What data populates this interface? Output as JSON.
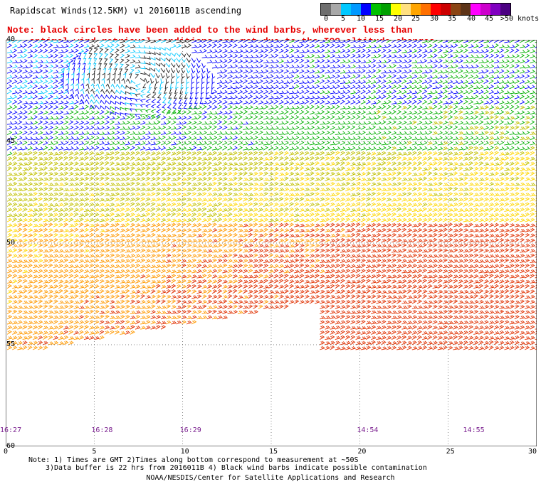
{
  "title": "Rapidscat Winds(12.5KM) v1 2016011B ascending",
  "note_line1": "Note: black circles have been added to the wind barbs, wherever less than",
  "note_line2": "optimal wind retrieval conditions are met due to the ISS altitude changes.",
  "legend": {
    "labels": [
      "0",
      "5",
      "10",
      "15",
      "20",
      "25",
      "30",
      "35",
      "40",
      "45",
      ">50 knots"
    ],
    "colors": [
      "#6e6e6e",
      "#a8a8a8",
      "#00c8ff",
      "#0099ff",
      "#0000ff",
      "#00c000",
      "#00a000",
      "#ffff00",
      "#ffe080",
      "#ffa500",
      "#ff7000",
      "#ff0000",
      "#cc0000",
      "#8b4513",
      "#5c3317",
      "#ff00ff",
      "#cc00cc",
      "#8000c0",
      "#4b0082"
    ]
  },
  "axes": {
    "lat_ticks": [
      "40",
      "45",
      "50",
      "55",
      "60"
    ],
    "lon_ticks": [
      "0",
      "5",
      "10",
      "15",
      "20",
      "25",
      "30"
    ],
    "time_labels": [
      {
        "text": "16:27",
        "lon": 0
      },
      {
        "text": "16:28",
        "lon": 5
      },
      {
        "text": "16:29",
        "lon": 10
      },
      {
        "text": "14:54",
        "lon": 20
      },
      {
        "text": "14:55",
        "lon": 26
      }
    ]
  },
  "footnote_line1": "Note: 1) Times are GMT 2)Times along bottom correspond to measurement at ~50S",
  "footnote_line2": "3)Data buffer is 22 hrs from 2016011B 4) Black wind barbs indicate possible contamination",
  "credit": "NOAA/NESDIS/Center for Satellite Applications and Research"
}
